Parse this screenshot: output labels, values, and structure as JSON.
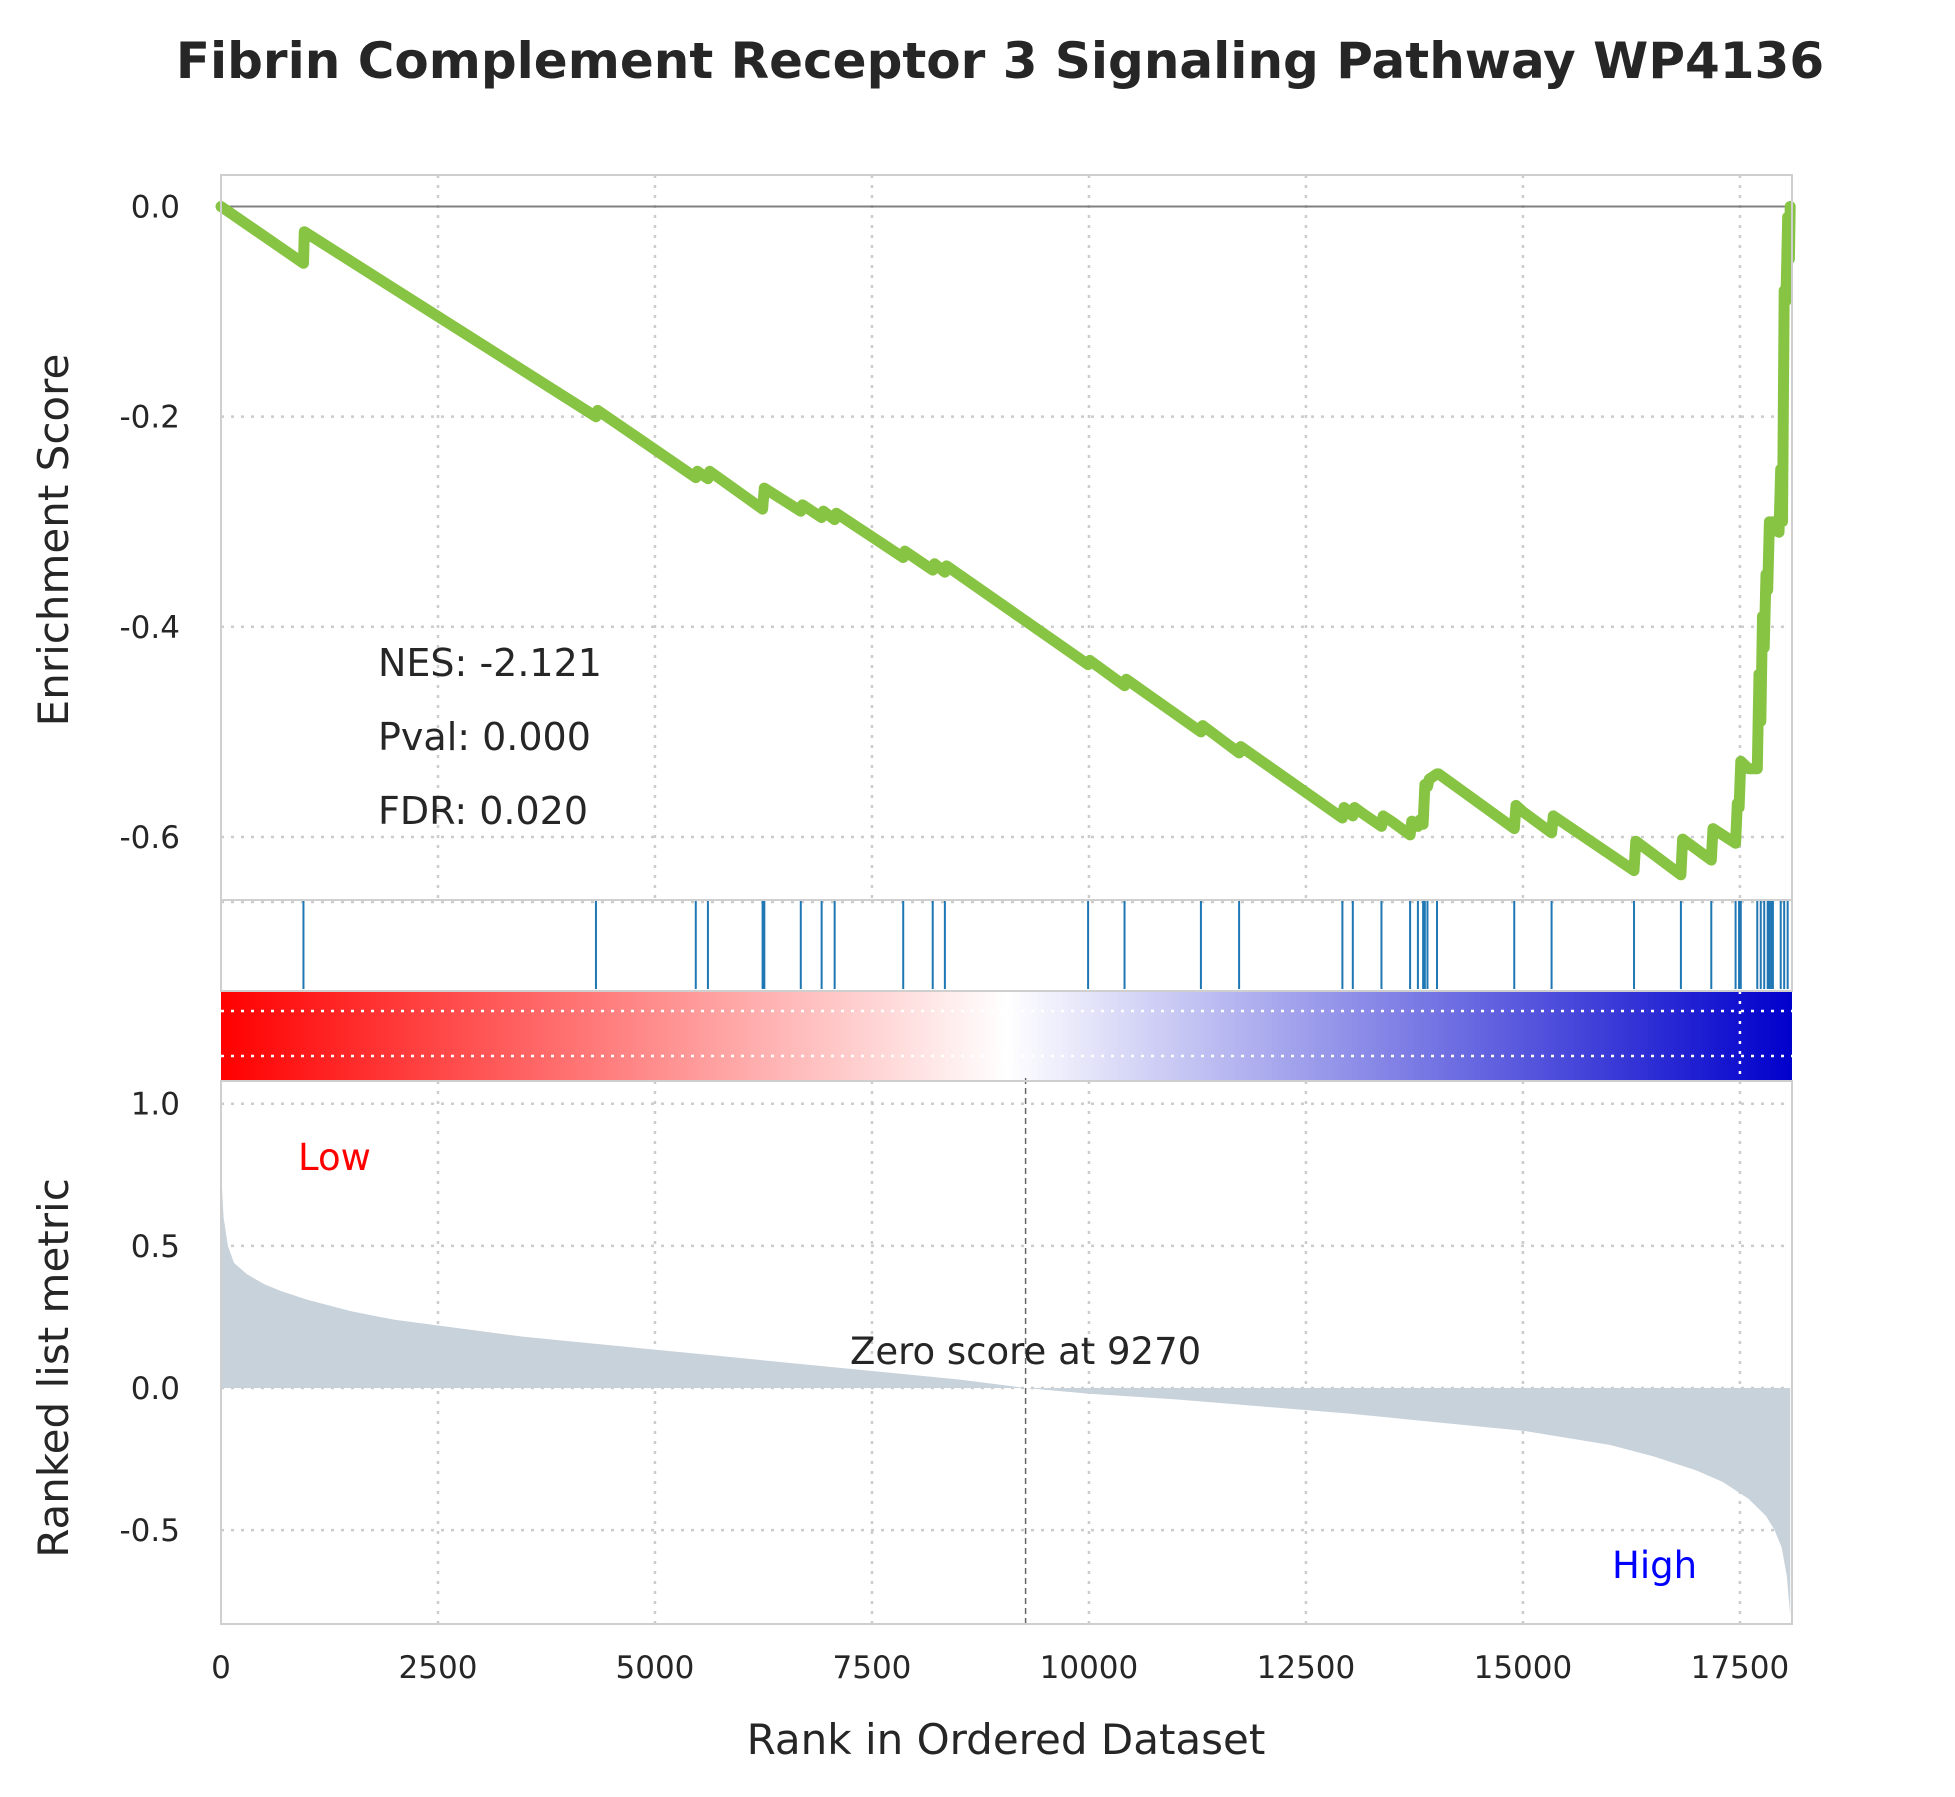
{
  "chart_data": {
    "type": "line",
    "title": "Fibrin Complement Receptor 3 Signaling Pathway WP4136",
    "xlabel": "Rank in Ordered Dataset",
    "x_ticks": [
      0,
      2500,
      5000,
      7500,
      10000,
      12500,
      15000,
      17500
    ],
    "xlim": [
      0,
      18100
    ],
    "grid": true,
    "panels": {
      "enrichment": {
        "ylabel": "Enrichment Score",
        "ylim": [
          -0.66,
          0.03
        ],
        "y_ticks": [
          0.0,
          -0.2,
          -0.4,
          -0.6
        ],
        "y_tick_labels": [
          "0.0",
          "-0.2",
          "-0.4",
          "-0.6"
        ],
        "line_color": "#88c444",
        "series": [
          {
            "x": [
              0,
              950,
              960,
              4320,
              4340,
              5470,
              5490,
              5610,
              5630,
              6240,
              6260,
              6680,
              6700,
              6920,
              6940,
              7070,
              7090,
              7860,
              7880,
              8200,
              8220,
              8340,
              8360,
              9990,
              10010,
              10410,
              10430,
              11290,
              11310,
              11730,
              11750,
              12920,
              12940,
              13040,
              13060,
              13160,
              13370,
              13390,
              13500,
              13700,
              13720,
              13790,
              13810,
              13850,
              13870,
              13900,
              13920,
              14010,
              14030,
              14900,
              14920,
              15000,
              15330,
              15350,
              16280,
              16300,
              16820,
              16840,
              17170,
              17190,
              17450,
              17470,
              17490,
              17510,
              17600,
              17700,
              17720,
              17740,
              17760,
              17780,
              17800,
              17820,
              17840,
              17860,
              17880,
              17950,
              17970,
              17990,
              18010,
              18030,
              18050,
              18070,
              18079
            ],
            "y": [
              0.0,
              -0.054,
              -0.024,
              -0.2,
              -0.194,
              -0.258,
              -0.252,
              -0.259,
              -0.252,
              -0.288,
              -0.268,
              -0.29,
              -0.284,
              -0.296,
              -0.29,
              -0.298,
              -0.292,
              -0.334,
              -0.328,
              -0.346,
              -0.34,
              -0.348,
              -0.342,
              -0.436,
              -0.432,
              -0.456,
              -0.45,
              -0.5,
              -0.494,
              -0.52,
              -0.514,
              -0.582,
              -0.572,
              -0.58,
              -0.572,
              -0.578,
              -0.59,
              -0.58,
              -0.586,
              -0.598,
              -0.585,
              -0.59,
              -0.584,
              -0.588,
              -0.55,
              -0.552,
              -0.545,
              -0.54,
              -0.54,
              -0.592,
              -0.57,
              -0.576,
              -0.596,
              -0.58,
              -0.632,
              -0.604,
              -0.636,
              -0.602,
              -0.622,
              -0.592,
              -0.606,
              -0.568,
              -0.572,
              -0.528,
              -0.535,
              -0.535,
              -0.445,
              -0.49,
              -0.39,
              -0.42,
              -0.35,
              -0.365,
              -0.3,
              -0.31,
              -0.3,
              -0.31,
              -0.25,
              -0.3,
              -0.08,
              -0.09,
              -0.01,
              -0.05,
              0.0
            ]
          }
        ],
        "annotations": [
          "NES: -2.121",
          "Pval: 0.000",
          "FDR: 0.020"
        ]
      },
      "hits": {
        "color": "#1f77b4",
        "positions": [
          950,
          4320,
          5470,
          5610,
          6240,
          6260,
          6680,
          6920,
          7070,
          7860,
          8200,
          8340,
          9990,
          10410,
          11290,
          11730,
          12920,
          13040,
          13370,
          13700,
          13790,
          13850,
          13870,
          13900,
          14010,
          14900,
          15330,
          16280,
          16820,
          17170,
          17450,
          17490,
          17510,
          17700,
          17740,
          17780,
          17820,
          17840,
          17860,
          17880,
          17970,
          18010,
          18050
        ]
      },
      "color_bar": {
        "low_color": "#ff0000",
        "mid_color": "#ffffff",
        "high_color": "#0000cc"
      },
      "ranked_metric": {
        "ylabel": "Ranked list metric",
        "ylim": [
          -0.83,
          1.08
        ],
        "y_ticks": [
          1.0,
          0.5,
          0.0,
          -0.5
        ],
        "y_tick_labels": [
          "1.0",
          "0.5",
          "0.0",
          "-0.5"
        ],
        "fill_color": "#c8d2da",
        "series": [
          {
            "x": [
              0,
              30,
              80,
              150,
              300,
              500,
              700,
              1000,
              1500,
              2000,
              2500,
              3500,
              4500,
              5500,
              6500,
              7500,
              8500,
              9270,
              10000,
              11000,
              12000,
              13000,
              14000,
              15000,
              16000,
              16500,
              17000,
              17300,
              17600,
              17800,
              17900,
              17980,
              18040,
              18079
            ],
            "y": [
              0.77,
              0.6,
              0.5,
              0.44,
              0.4,
              0.365,
              0.34,
              0.31,
              0.27,
              0.24,
              0.22,
              0.18,
              0.15,
              0.12,
              0.09,
              0.06,
              0.03,
              0.0,
              -0.02,
              -0.04,
              -0.065,
              -0.09,
              -0.12,
              -0.15,
              -0.2,
              -0.24,
              -0.29,
              -0.33,
              -0.39,
              -0.45,
              -0.5,
              -0.56,
              -0.66,
              -0.8
            ]
          }
        ],
        "zero_cross": 9270,
        "zero_label": "Zero score at 9270",
        "low_label": "Low",
        "high_label": "High",
        "low_color": "#ff0000",
        "high_color": "#0000ff"
      }
    }
  }
}
